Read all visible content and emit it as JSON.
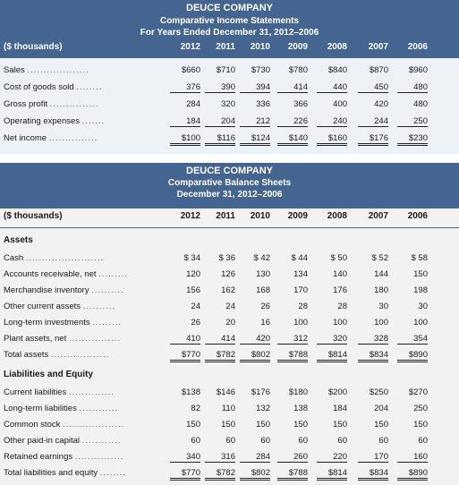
{
  "income": {
    "company": "DEUCE COMPANY",
    "title": "Comparative Income Statements",
    "subtitle": "For Years Ended December 31, 2012–2006",
    "unit": "($ thousands)",
    "years": [
      "2012",
      "2011",
      "2010",
      "2009",
      "2008",
      "2007",
      "2006"
    ],
    "rows": [
      {
        "label": "Sales",
        "dots": "...................",
        "values": [
          "$660",
          "$710",
          "$730",
          "$780",
          "$840",
          "$870",
          "$960"
        ]
      },
      {
        "label": "Cost of goods sold",
        "dots": "........",
        "values": [
          "376",
          "390",
          "394",
          "414",
          "440",
          "450",
          "480"
        ]
      },
      {
        "label": "Gross profit",
        "dots": "...............",
        "values": [
          "284",
          "320",
          "336",
          "366",
          "400",
          "420",
          "480"
        ]
      },
      {
        "label": "Operating expenses",
        "dots": ".......",
        "values": [
          "184",
          "204",
          "212",
          "226",
          "240",
          "244",
          "250"
        ]
      },
      {
        "label": "Net income",
        "dots": "...............",
        "values": [
          "$100",
          "$116",
          "$124",
          "$140",
          "$160",
          "$176",
          "$230"
        ]
      }
    ]
  },
  "balance": {
    "company": "DEUCE COMPANY",
    "title": "Comparative Balance Sheets",
    "subtitle": "December 31, 2012–2006",
    "unit": "($ thousands)",
    "years": [
      "2012",
      "2011",
      "2010",
      "2009",
      "2008",
      "2007",
      "2006"
    ],
    "assets_heading": "Assets",
    "assets": [
      {
        "label": "Cash",
        "dots": "........................",
        "values": [
          "$ 34",
          "$ 36",
          "$ 42",
          "$ 44",
          "$ 50",
          "$ 52",
          "$ 58"
        ]
      },
      {
        "label": "Accounts receivable, net",
        "dots": ".........",
        "values": [
          "120",
          "126",
          "130",
          "134",
          "140",
          "144",
          "150"
        ]
      },
      {
        "label": "Merchandise inventory",
        "dots": "..........",
        "values": [
          "156",
          "162",
          "168",
          "170",
          "176",
          "180",
          "198"
        ]
      },
      {
        "label": "Other current assets",
        "dots": "..........",
        "values": [
          "24",
          "24",
          "26",
          "28",
          "28",
          "30",
          "30"
        ]
      },
      {
        "label": "Long-term investments",
        "dots": ".........",
        "values": [
          "26",
          "20",
          "16",
          "100",
          "100",
          "100",
          "100"
        ]
      },
      {
        "label": "Plant assets, net",
        "dots": "................",
        "values": [
          "410",
          "414",
          "420",
          "312",
          "320",
          "328",
          "354"
        ]
      },
      {
        "label": "Total assets",
        "dots": "..................",
        "values": [
          "$770",
          "$782",
          "$802",
          "$788",
          "$814",
          "$834",
          "$890"
        ]
      }
    ],
    "liab_heading": "Liabilities and Equity",
    "liabilities": [
      {
        "label": "Current liabilities",
        "dots": "..............",
        "values": [
          "$138",
          "$146",
          "$176",
          "$180",
          "$200",
          "$250",
          "$270"
        ]
      },
      {
        "label": "Long-term liabilities",
        "dots": "............",
        "values": [
          "82",
          "110",
          "132",
          "138",
          "184",
          "204",
          "250"
        ]
      },
      {
        "label": "Common stock",
        "dots": "...................",
        "values": [
          "150",
          "150",
          "150",
          "150",
          "150",
          "150",
          "150"
        ]
      },
      {
        "label": "Other paid-in capital",
        "dots": "............",
        "values": [
          "60",
          "60",
          "60",
          "60",
          "60",
          "60",
          "60"
        ]
      },
      {
        "label": "Retained earnings",
        "dots": "...............",
        "values": [
          "340",
          "316",
          "284",
          "260",
          "220",
          "170",
          "160"
        ]
      },
      {
        "label": "Total liabilities and equity",
        "dots": "........",
        "values": [
          "$770",
          "$782",
          "$802",
          "$788",
          "$814",
          "$834",
          "$890"
        ]
      }
    ]
  }
}
